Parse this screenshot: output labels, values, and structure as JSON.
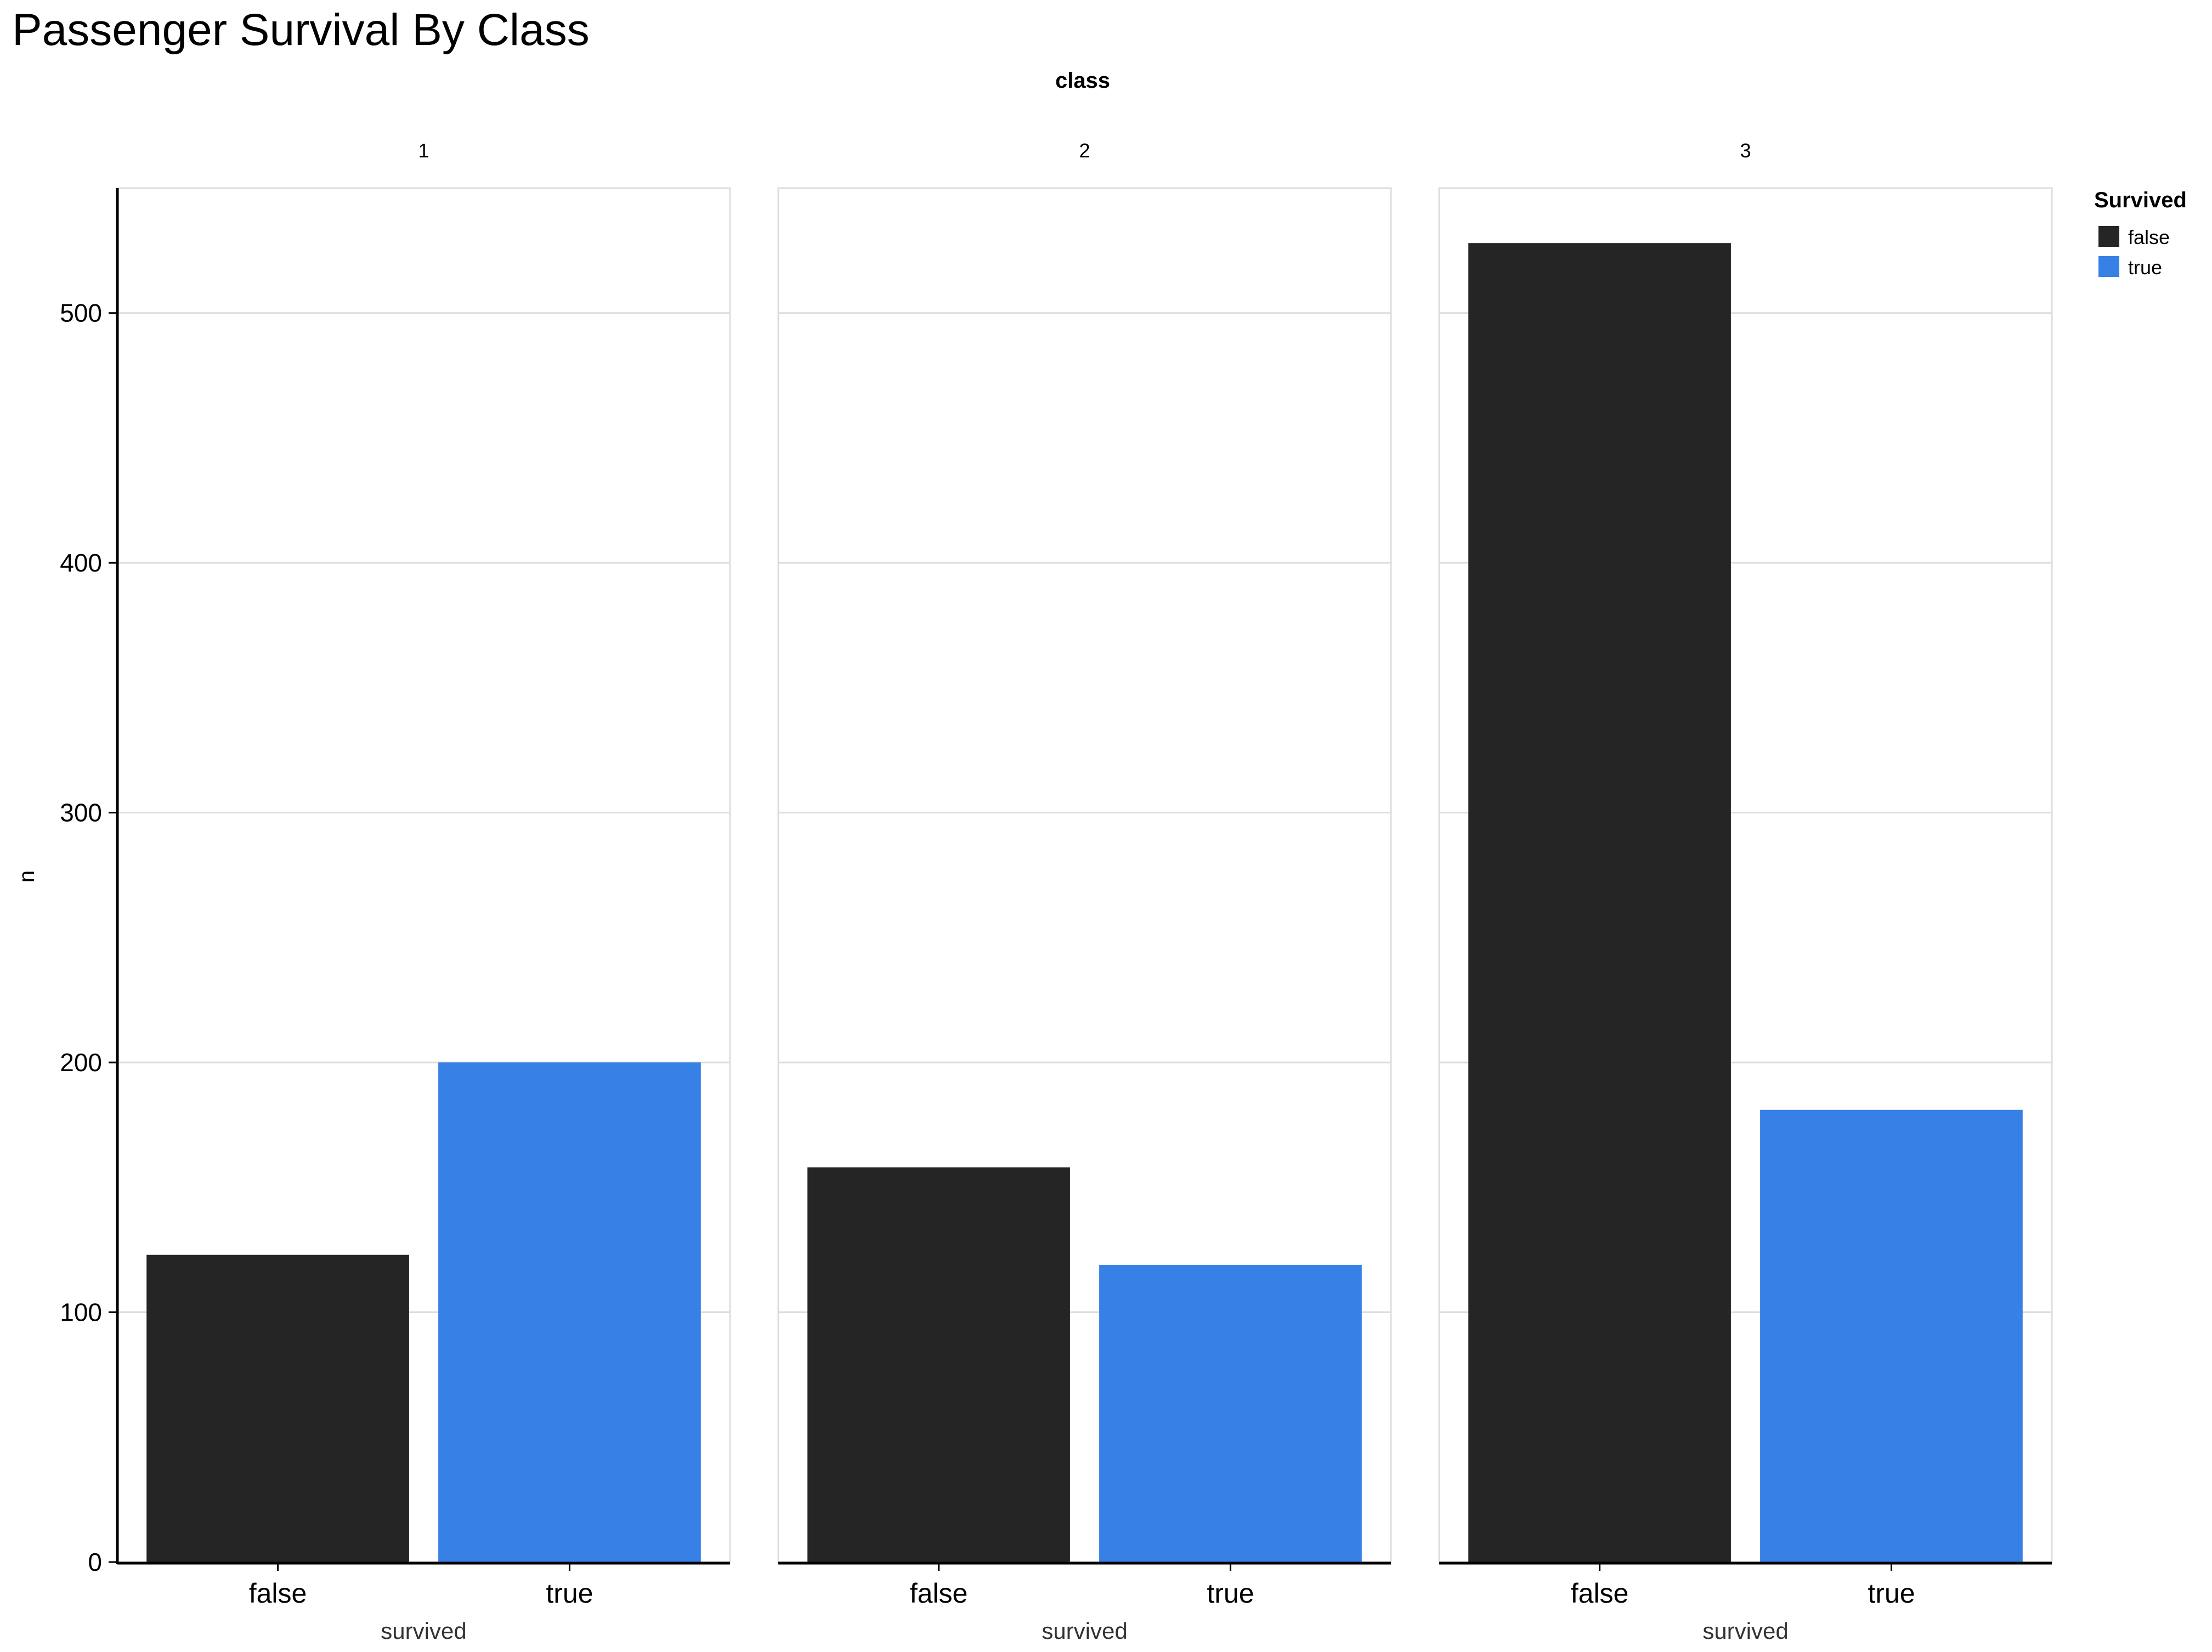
{
  "chart_data": {
    "type": "bar",
    "title": "Passenger Survival By Class",
    "facet_title": "class",
    "facets": [
      "1",
      "2",
      "3"
    ],
    "categories": [
      "false",
      "true"
    ],
    "xlabel": "survived",
    "ylabel": "n",
    "ylim": [
      0,
      550
    ],
    "yticks": [
      0,
      100,
      200,
      300,
      400,
      500
    ],
    "grid": true,
    "legend": {
      "title": "Survived",
      "placement": "top-right",
      "entries": [
        {
          "label": "false",
          "color": "#252525"
        },
        {
          "label": "true",
          "color": "#3780e6"
        }
      ]
    },
    "values": [
      [
        123,
        200
      ],
      [
        158,
        119
      ],
      [
        528,
        181
      ]
    ]
  }
}
